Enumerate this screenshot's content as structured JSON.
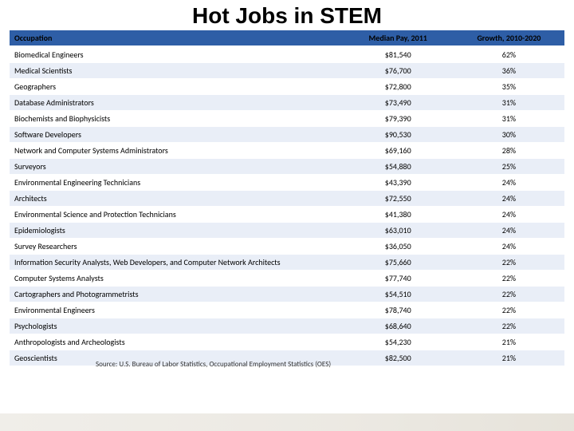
{
  "title": {
    "text": "Hot Jobs in STEM",
    "fontsize": 28,
    "color": "#000000"
  },
  "table": {
    "type": "table",
    "header_bg": "#2e5ea6",
    "header_fg": "#000000",
    "row_alt_bg": "#e9eef7",
    "row_bg": "#ffffff",
    "text_color": "#000000",
    "fontsize": 10,
    "columns": [
      {
        "label": "Occupation",
        "align": "left"
      },
      {
        "label": "Median Pay, 2011",
        "align": "center"
      },
      {
        "label": "Growth, 2010-2020",
        "align": "center"
      }
    ],
    "rows": [
      [
        "Biomedical Engineers",
        "$81,540",
        "62%"
      ],
      [
        "Medical Scientists",
        "$76,700",
        "36%"
      ],
      [
        "Geographers",
        "$72,800",
        "35%"
      ],
      [
        "Database Administrators",
        "$73,490",
        "31%"
      ],
      [
        "Biochemists and Biophysicists",
        "$79,390",
        "31%"
      ],
      [
        "Software Developers",
        "$90,530",
        "30%"
      ],
      [
        "Network and Computer Systems Administrators",
        "$69,160",
        "28%"
      ],
      [
        "Surveyors",
        "$54,880",
        "25%"
      ],
      [
        "Environmental Engineering Technicians",
        "$43,390",
        "24%"
      ],
      [
        "Architects",
        "$72,550",
        "24%"
      ],
      [
        "Environmental Science and Protection Technicians",
        "$41,380",
        "24%"
      ],
      [
        "Epidemiologists",
        "$63,010",
        "24%"
      ],
      [
        "Survey Researchers",
        "$36,050",
        "24%"
      ],
      [
        "Information Security Analysts, Web Developers, and Computer Network Architects",
        "$75,660",
        "22%"
      ],
      [
        "Computer Systems Analysts",
        "$77,740",
        "22%"
      ],
      [
        "Cartographers and Photogrammetrists",
        "$54,510",
        "22%"
      ],
      [
        "Environmental Engineers",
        "$78,740",
        "22%"
      ],
      [
        "Psychologists",
        "$68,640",
        "22%"
      ],
      [
        "Anthropologists and Archeologists",
        "$54,230",
        "21%"
      ],
      [
        "Geoscientists",
        "$82,500",
        "21%"
      ]
    ]
  },
  "source": "Source: U.S. Bureau of Labor Statistics, Occupational Employment Statistics (OES)"
}
